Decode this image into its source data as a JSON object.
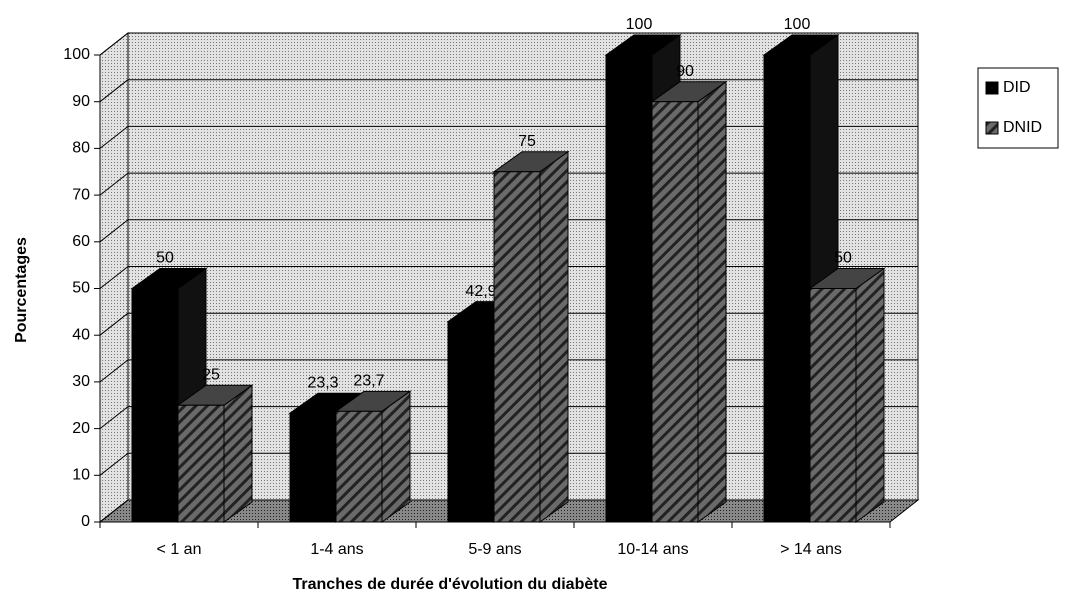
{
  "chart_data": {
    "type": "bar3d",
    "x_label": "Tranches de durée d'évolution du diabète",
    "y_label": "Pourcentages",
    "categories": [
      "< 1 an",
      "1-4 ans",
      "5-9 ans",
      "10-14 ans",
      "> 14 ans"
    ],
    "series": [
      {
        "name": "DID",
        "color": "#000000",
        "values": [
          50,
          23.3,
          42.9,
          100,
          100
        ],
        "value_labels": [
          "50",
          "23,3",
          "42,9",
          "100",
          "100"
        ]
      },
      {
        "name": "DNID",
        "color": "#555555",
        "values": [
          25,
          23.7,
          75,
          90,
          50
        ],
        "value_labels": [
          "25",
          "23,7",
          "75",
          "90",
          "50"
        ]
      }
    ],
    "ylim": [
      0,
      100
    ],
    "yticks": [
      0,
      10,
      20,
      30,
      40,
      50,
      60,
      70,
      80,
      90,
      100
    ],
    "grid": true,
    "legend": "right"
  }
}
